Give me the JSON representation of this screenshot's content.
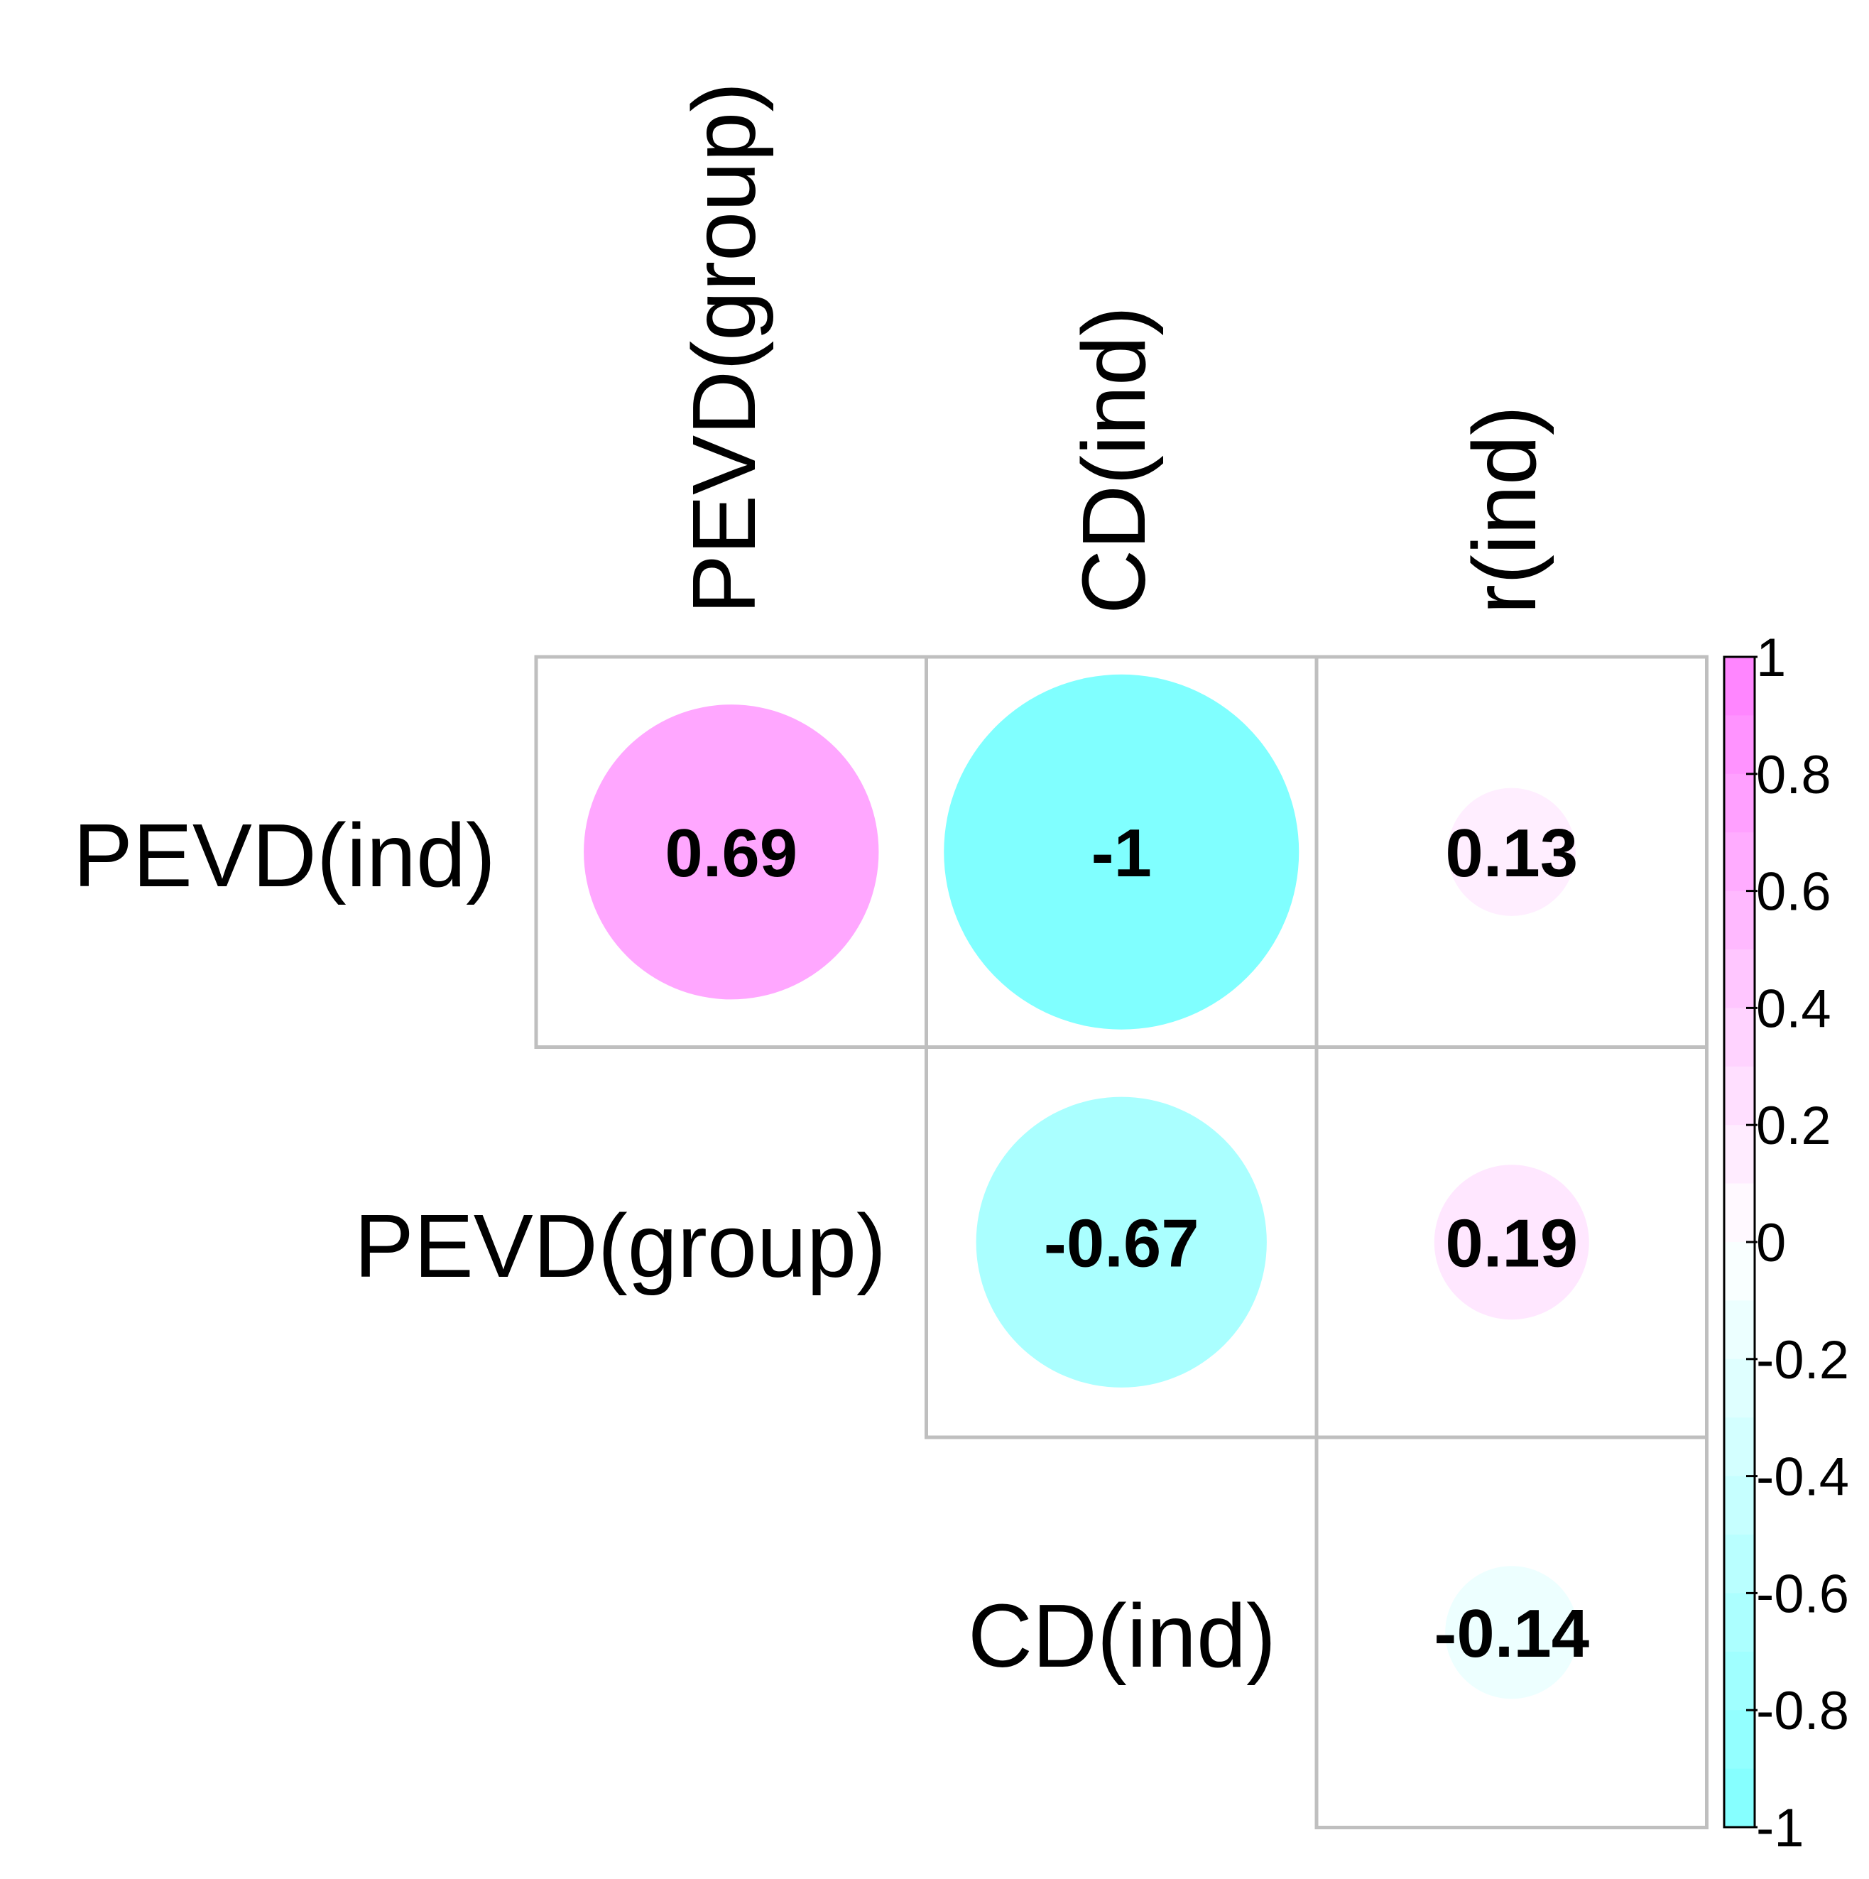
{
  "chart_data": {
    "type": "correlation-matrix",
    "columns": [
      "PEVD(group)",
      "CD(ind)",
      "r(ind)"
    ],
    "rows": [
      "PEVD(ind)",
      "PEVD(group)",
      "CD(ind)"
    ],
    "cells": [
      {
        "row": 0,
        "col": 0,
        "value": 0.69,
        "label": "0.69"
      },
      {
        "row": 0,
        "col": 1,
        "value": -1,
        "label": "-1"
      },
      {
        "row": 0,
        "col": 2,
        "value": 0.13,
        "label": "0.13"
      },
      {
        "row": 1,
        "col": 1,
        "value": -0.67,
        "label": "-0.67"
      },
      {
        "row": 1,
        "col": 2,
        "value": 0.19,
        "label": "0.19"
      },
      {
        "row": 2,
        "col": 2,
        "value": -0.14,
        "label": "-0.14"
      }
    ],
    "colorbar": {
      "range": [
        -1,
        1
      ],
      "ticks": [
        1,
        0.8,
        0.6,
        0.4,
        0.2,
        0,
        -0.2,
        -0.4,
        -0.6,
        -0.8,
        -1
      ],
      "tick_labels": [
        "1",
        "0.8",
        "0.6",
        "0.4",
        "0.2",
        "0",
        "-0.2",
        "-0.4",
        "-0.6",
        "-0.8",
        "-1"
      ],
      "positive_color": "#ff80ff",
      "negative_color": "#80ffff",
      "neutral_color": "#ffffff"
    },
    "grid_color": "#bfbfbf"
  }
}
